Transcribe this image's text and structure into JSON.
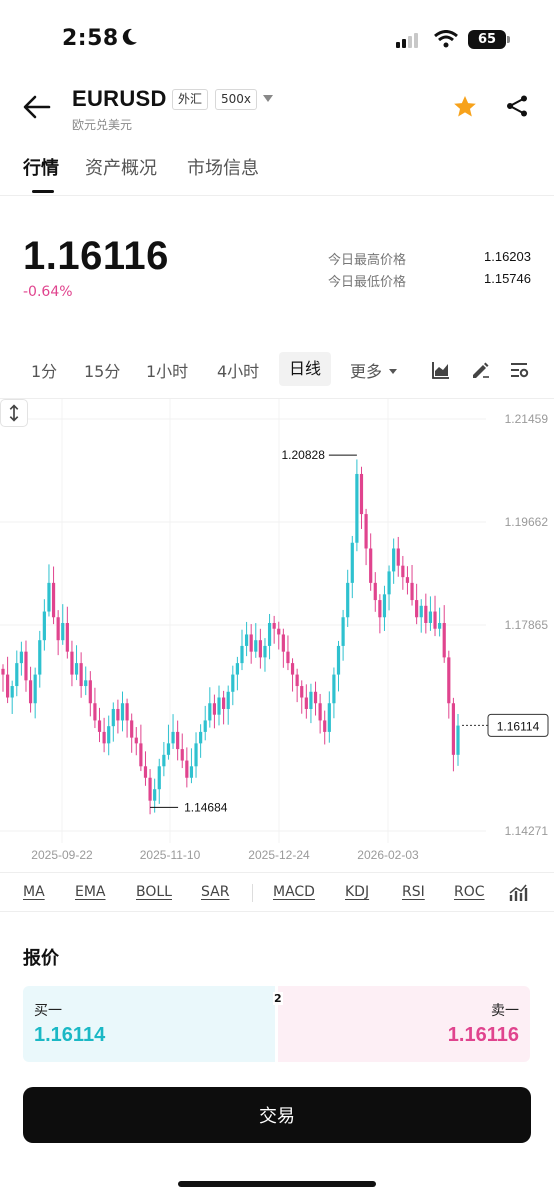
{
  "status_bar": {
    "time": "2:58",
    "battery": "65"
  },
  "header": {
    "symbol": "EURUSD",
    "tag_market": "外汇",
    "tag_leverage": "500x",
    "subtitle": "欧元兑美元"
  },
  "tabs": [
    {
      "label": "行情"
    },
    {
      "label": "资产概况"
    },
    {
      "label": "市场信息"
    }
  ],
  "price": {
    "current": "1.16116",
    "change": "-0.64%",
    "high_label": "今日最高价格",
    "high_value": "1.16203",
    "low_label": "今日最低价格",
    "low_value": "1.15746"
  },
  "intervals": [
    {
      "label": "1分"
    },
    {
      "label": "15分"
    },
    {
      "label": "1小时"
    },
    {
      "label": "4小时"
    },
    {
      "label": "日线"
    },
    {
      "label": "更多"
    }
  ],
  "colors": {
    "up": "#2ec1cf",
    "down": "#e0448e"
  },
  "chart_data": {
    "type": "candlestick",
    "y_axis_ticks": [
      "1.21459",
      "1.19662",
      "1.17865",
      "1.16114",
      "1.14271"
    ],
    "x_axis_ticks": [
      "2025-09-22",
      "2025-11-10",
      "2025-12-24",
      "2026-02-03"
    ],
    "ylim": [
      1.14271,
      1.21459
    ],
    "high_marker": "1.20828",
    "low_marker": "1.14684",
    "last_price": "1.16114",
    "grid": true,
    "closes": [
      1.17,
      1.166,
      1.168,
      1.172,
      1.174,
      1.169,
      1.165,
      1.17,
      1.176,
      1.181,
      1.186,
      1.18,
      1.176,
      1.179,
      1.174,
      1.17,
      1.172,
      1.168,
      1.169,
      1.165,
      1.162,
      1.16,
      1.158,
      1.161,
      1.164,
      1.162,
      1.165,
      1.162,
      1.159,
      1.158,
      1.154,
      1.152,
      1.148,
      1.15,
      1.154,
      1.156,
      1.158,
      1.16,
      1.157,
      1.155,
      1.152,
      1.154,
      1.158,
      1.16,
      1.162,
      1.165,
      1.163,
      1.166,
      1.164,
      1.167,
      1.17,
      1.172,
      1.175,
      1.177,
      1.174,
      1.176,
      1.173,
      1.175,
      1.179,
      1.178,
      1.177,
      1.174,
      1.172,
      1.17,
      1.168,
      1.166,
      1.164,
      1.167,
      1.165,
      1.162,
      1.16,
      1.165,
      1.17,
      1.175,
      1.18,
      1.186,
      1.193,
      1.205,
      1.198,
      1.192,
      1.186,
      1.183,
      1.18,
      1.184,
      1.188,
      1.192,
      1.189,
      1.187,
      1.186,
      1.183,
      1.18,
      1.182,
      1.179,
      1.181,
      1.178,
      1.179,
      1.173,
      1.165,
      1.156,
      1.1611
    ]
  },
  "indicators": [
    {
      "label": "MA"
    },
    {
      "label": "EMA"
    },
    {
      "label": "BOLL"
    },
    {
      "label": "SAR"
    },
    {
      "label": "MACD"
    },
    {
      "label": "KDJ"
    },
    {
      "label": "RSI"
    },
    {
      "label": "ROC"
    }
  ],
  "quote": {
    "title": "报价",
    "bid_label": "买一",
    "bid_value": "1.16114",
    "ask_label": "卖一",
    "ask_value": "1.16116",
    "spread": "2"
  },
  "trade_button": "交易"
}
